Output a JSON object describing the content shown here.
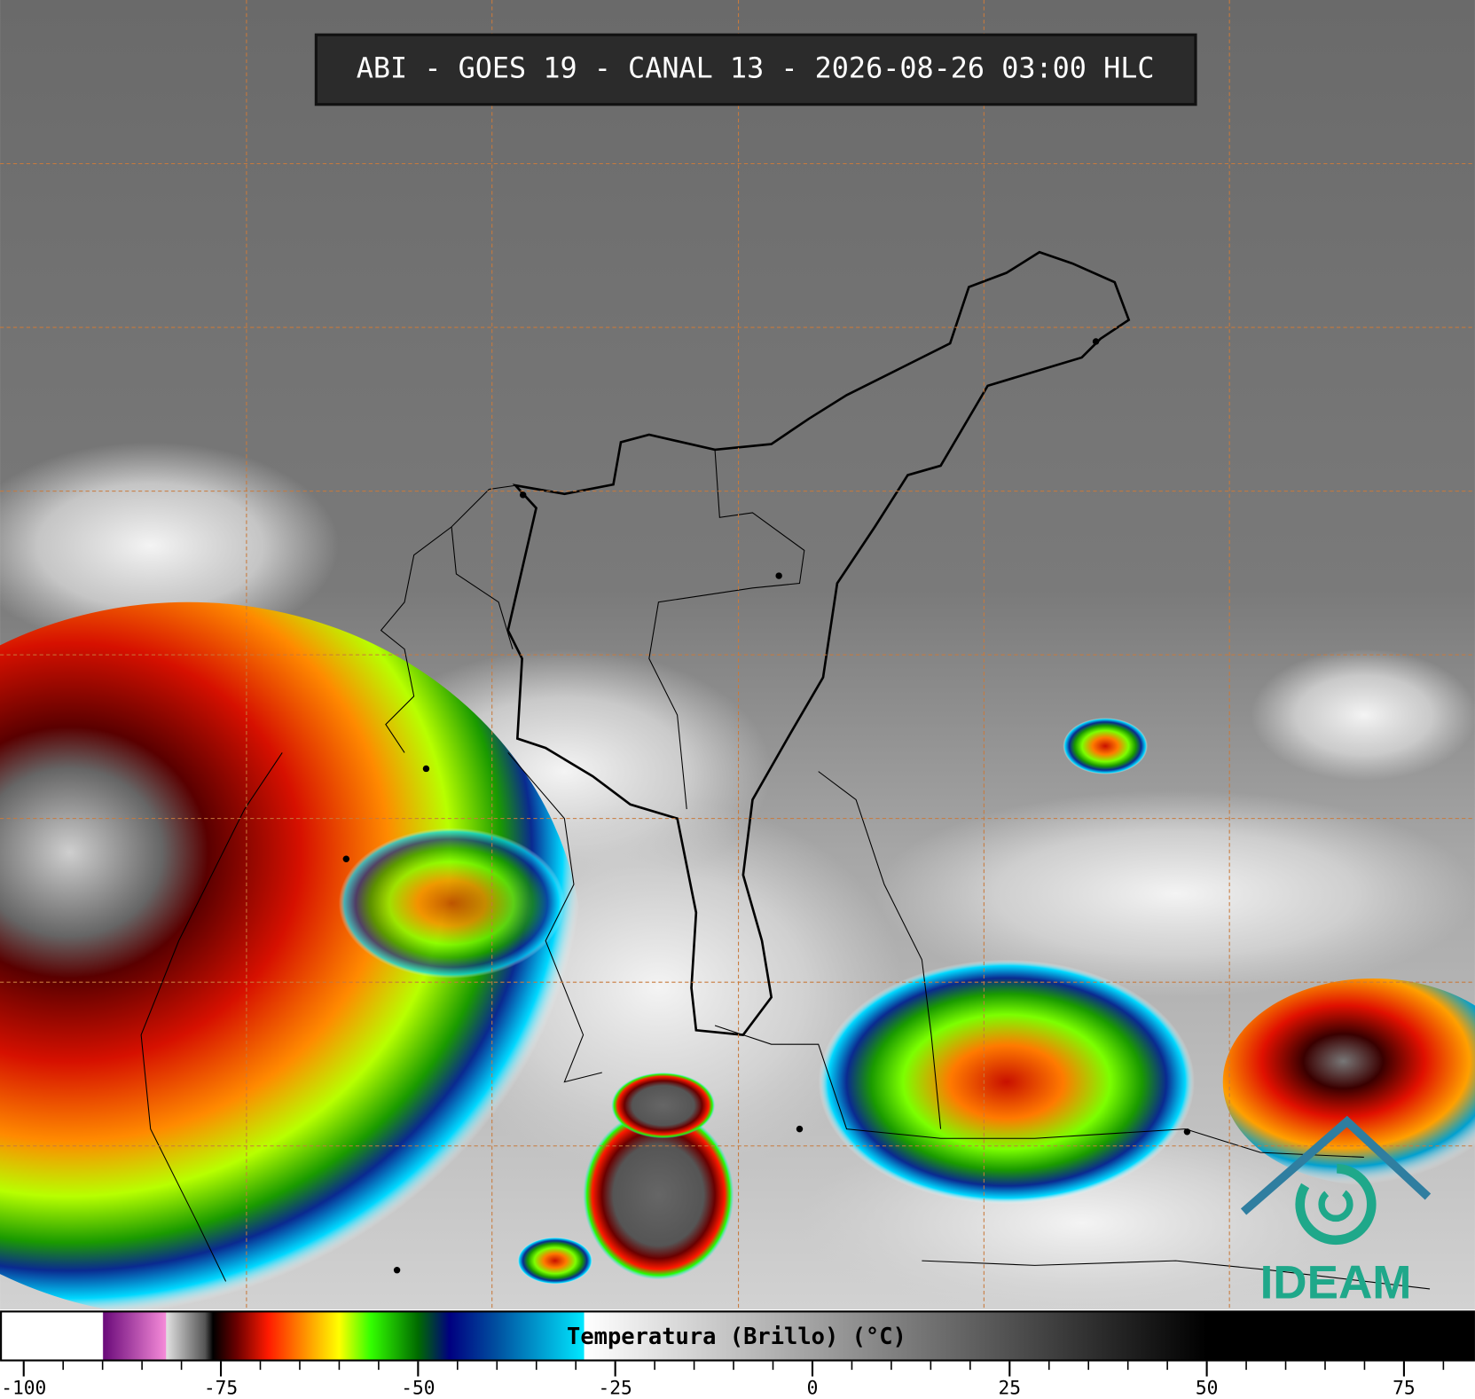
{
  "header": {
    "title": "ABI - GOES 19 - CANAL 13 - 2026-08-26 03:00 HLC"
  },
  "colorbar": {
    "label": "Temperatura (Brillo) (°C)",
    "lim": [
      -103,
      84
    ],
    "ticks": [
      -100,
      -75,
      -50,
      -25,
      0,
      25,
      50,
      75
    ],
    "minor_ticks": [
      -95,
      -90,
      -85,
      -80,
      -70,
      -65,
      -60,
      -55,
      -45,
      -40,
      -35,
      -30,
      -20,
      -15,
      -10,
      -5,
      5,
      10,
      15,
      20,
      30,
      35,
      40,
      45,
      55,
      60,
      65,
      70,
      80
    ],
    "colormap": [
      {
        "value": -103,
        "color": "#ffffff"
      },
      {
        "value": -90,
        "color": "#ffffff"
      },
      {
        "value": -89.9,
        "color": "#6a0a7a"
      },
      {
        "value": -82,
        "color": "#f58ad8"
      },
      {
        "value": -81.9,
        "color": "#e0e0e0"
      },
      {
        "value": -77,
        "color": "#555555"
      },
      {
        "value": -76,
        "color": "#000000"
      },
      {
        "value": -73,
        "color": "#6a0000"
      },
      {
        "value": -69,
        "color": "#ff1a00"
      },
      {
        "value": -64,
        "color": "#ff9a00"
      },
      {
        "value": -60,
        "color": "#ffff00"
      },
      {
        "value": -56,
        "color": "#33ff00"
      },
      {
        "value": -50,
        "color": "#006a00"
      },
      {
        "value": -46,
        "color": "#000080"
      },
      {
        "value": -40,
        "color": "#0050a0"
      },
      {
        "value": -29,
        "color": "#00e8ff"
      },
      {
        "value": -28.9,
        "color": "#ffffff"
      },
      {
        "value": 50,
        "color": "#000000"
      },
      {
        "value": 84,
        "color": "#000000"
      }
    ]
  },
  "logo": {
    "text": "IDEAM"
  }
}
